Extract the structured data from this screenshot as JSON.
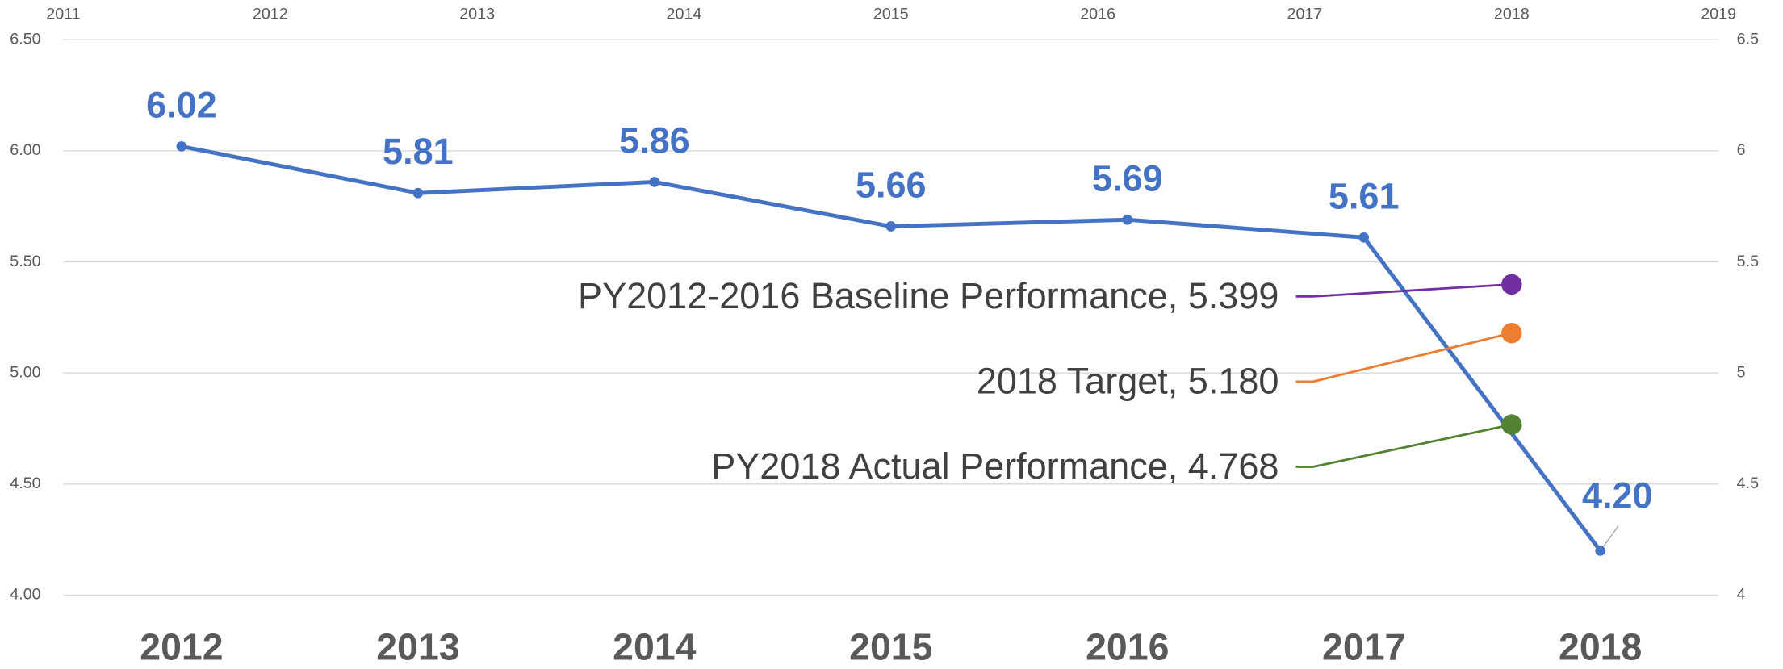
{
  "chart_data": {
    "type": "line",
    "categories": [
      "2012",
      "2013",
      "2014",
      "2015",
      "2016",
      "2017",
      "2018"
    ],
    "series": [
      {
        "type": "line",
        "color": "#4472c4",
        "values": [
          6.02,
          5.81,
          5.86,
          5.66,
          5.69,
          5.61,
          4.2
        ],
        "value_labels": [
          "6.02",
          "5.81",
          "5.86",
          "5.66",
          "5.69",
          "5.61",
          "4.20"
        ]
      },
      {
        "type": "scatter",
        "axis": "y2",
        "color": "#7030a0",
        "x": [
          2018
        ],
        "values": [
          5.399
        ],
        "value_labels": [
          "PY2012-2016 Baseline Performance, 5.399"
        ]
      },
      {
        "type": "scatter",
        "axis": "y2",
        "color": "#ed7d31",
        "x": [
          2018
        ],
        "values": [
          5.18
        ],
        "value_labels": [
          "2018 Target, 5.180"
        ]
      },
      {
        "type": "scatter",
        "axis": "y2",
        "color": "#548235",
        "x": [
          2018
        ],
        "values": [
          4.768
        ],
        "value_labels": [
          "PY2018 Actual Performance, 4.768"
        ]
      }
    ],
    "ylim": [
      4,
      6.5
    ],
    "yticks": [
      {
        "value": 4,
        "label": "4.00"
      },
      {
        "value": 4.5,
        "label": "4.50"
      },
      {
        "value": 5,
        "label": "5.00"
      },
      {
        "value": 5.5,
        "label": "5.50"
      },
      {
        "value": 6,
        "label": "6.00"
      },
      {
        "value": 6.5,
        "label": "6.50"
      }
    ],
    "y2lim": [
      4,
      6.5
    ],
    "y2ticks": [
      4,
      4.5,
      5,
      5.5,
      6,
      6.5
    ],
    "xlim": [
      2011,
      2019
    ],
    "xticks": [
      2011,
      2012,
      2013,
      2014,
      2015,
      2016,
      2017,
      2018,
      2019
    ],
    "grid": true
  }
}
